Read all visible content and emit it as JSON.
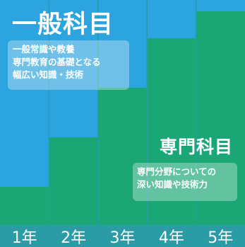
{
  "chart_data": {
    "type": "bar",
    "stacked": true,
    "percent": true,
    "categories": [
      "1年",
      "2年",
      "3年",
      "4年",
      "5年"
    ],
    "series": [
      {
        "name": "専門科目",
        "values": [
          17,
          39,
          61,
          83,
          95
        ],
        "color": "#1aa775"
      },
      {
        "name": "一般科目",
        "values": [
          83,
          61,
          39,
          17,
          5
        ],
        "color": "#2ba4df"
      }
    ],
    "title": "",
    "xlabel": "",
    "ylabel": "",
    "ylim": [
      0,
      100
    ],
    "grid": false,
    "legend": "none"
  },
  "annotations": {
    "general": {
      "title": "一般科目",
      "lines": [
        "一般常識や教養",
        "専門教育の基礎となる",
        "幅広い知識・技術"
      ]
    },
    "specialized": {
      "title": "専門科目",
      "lines": [
        "専門分野についての",
        "深い知識や技術力"
      ]
    }
  },
  "colors": {
    "background": "#2b9ba6",
    "text": "#ffffff"
  }
}
